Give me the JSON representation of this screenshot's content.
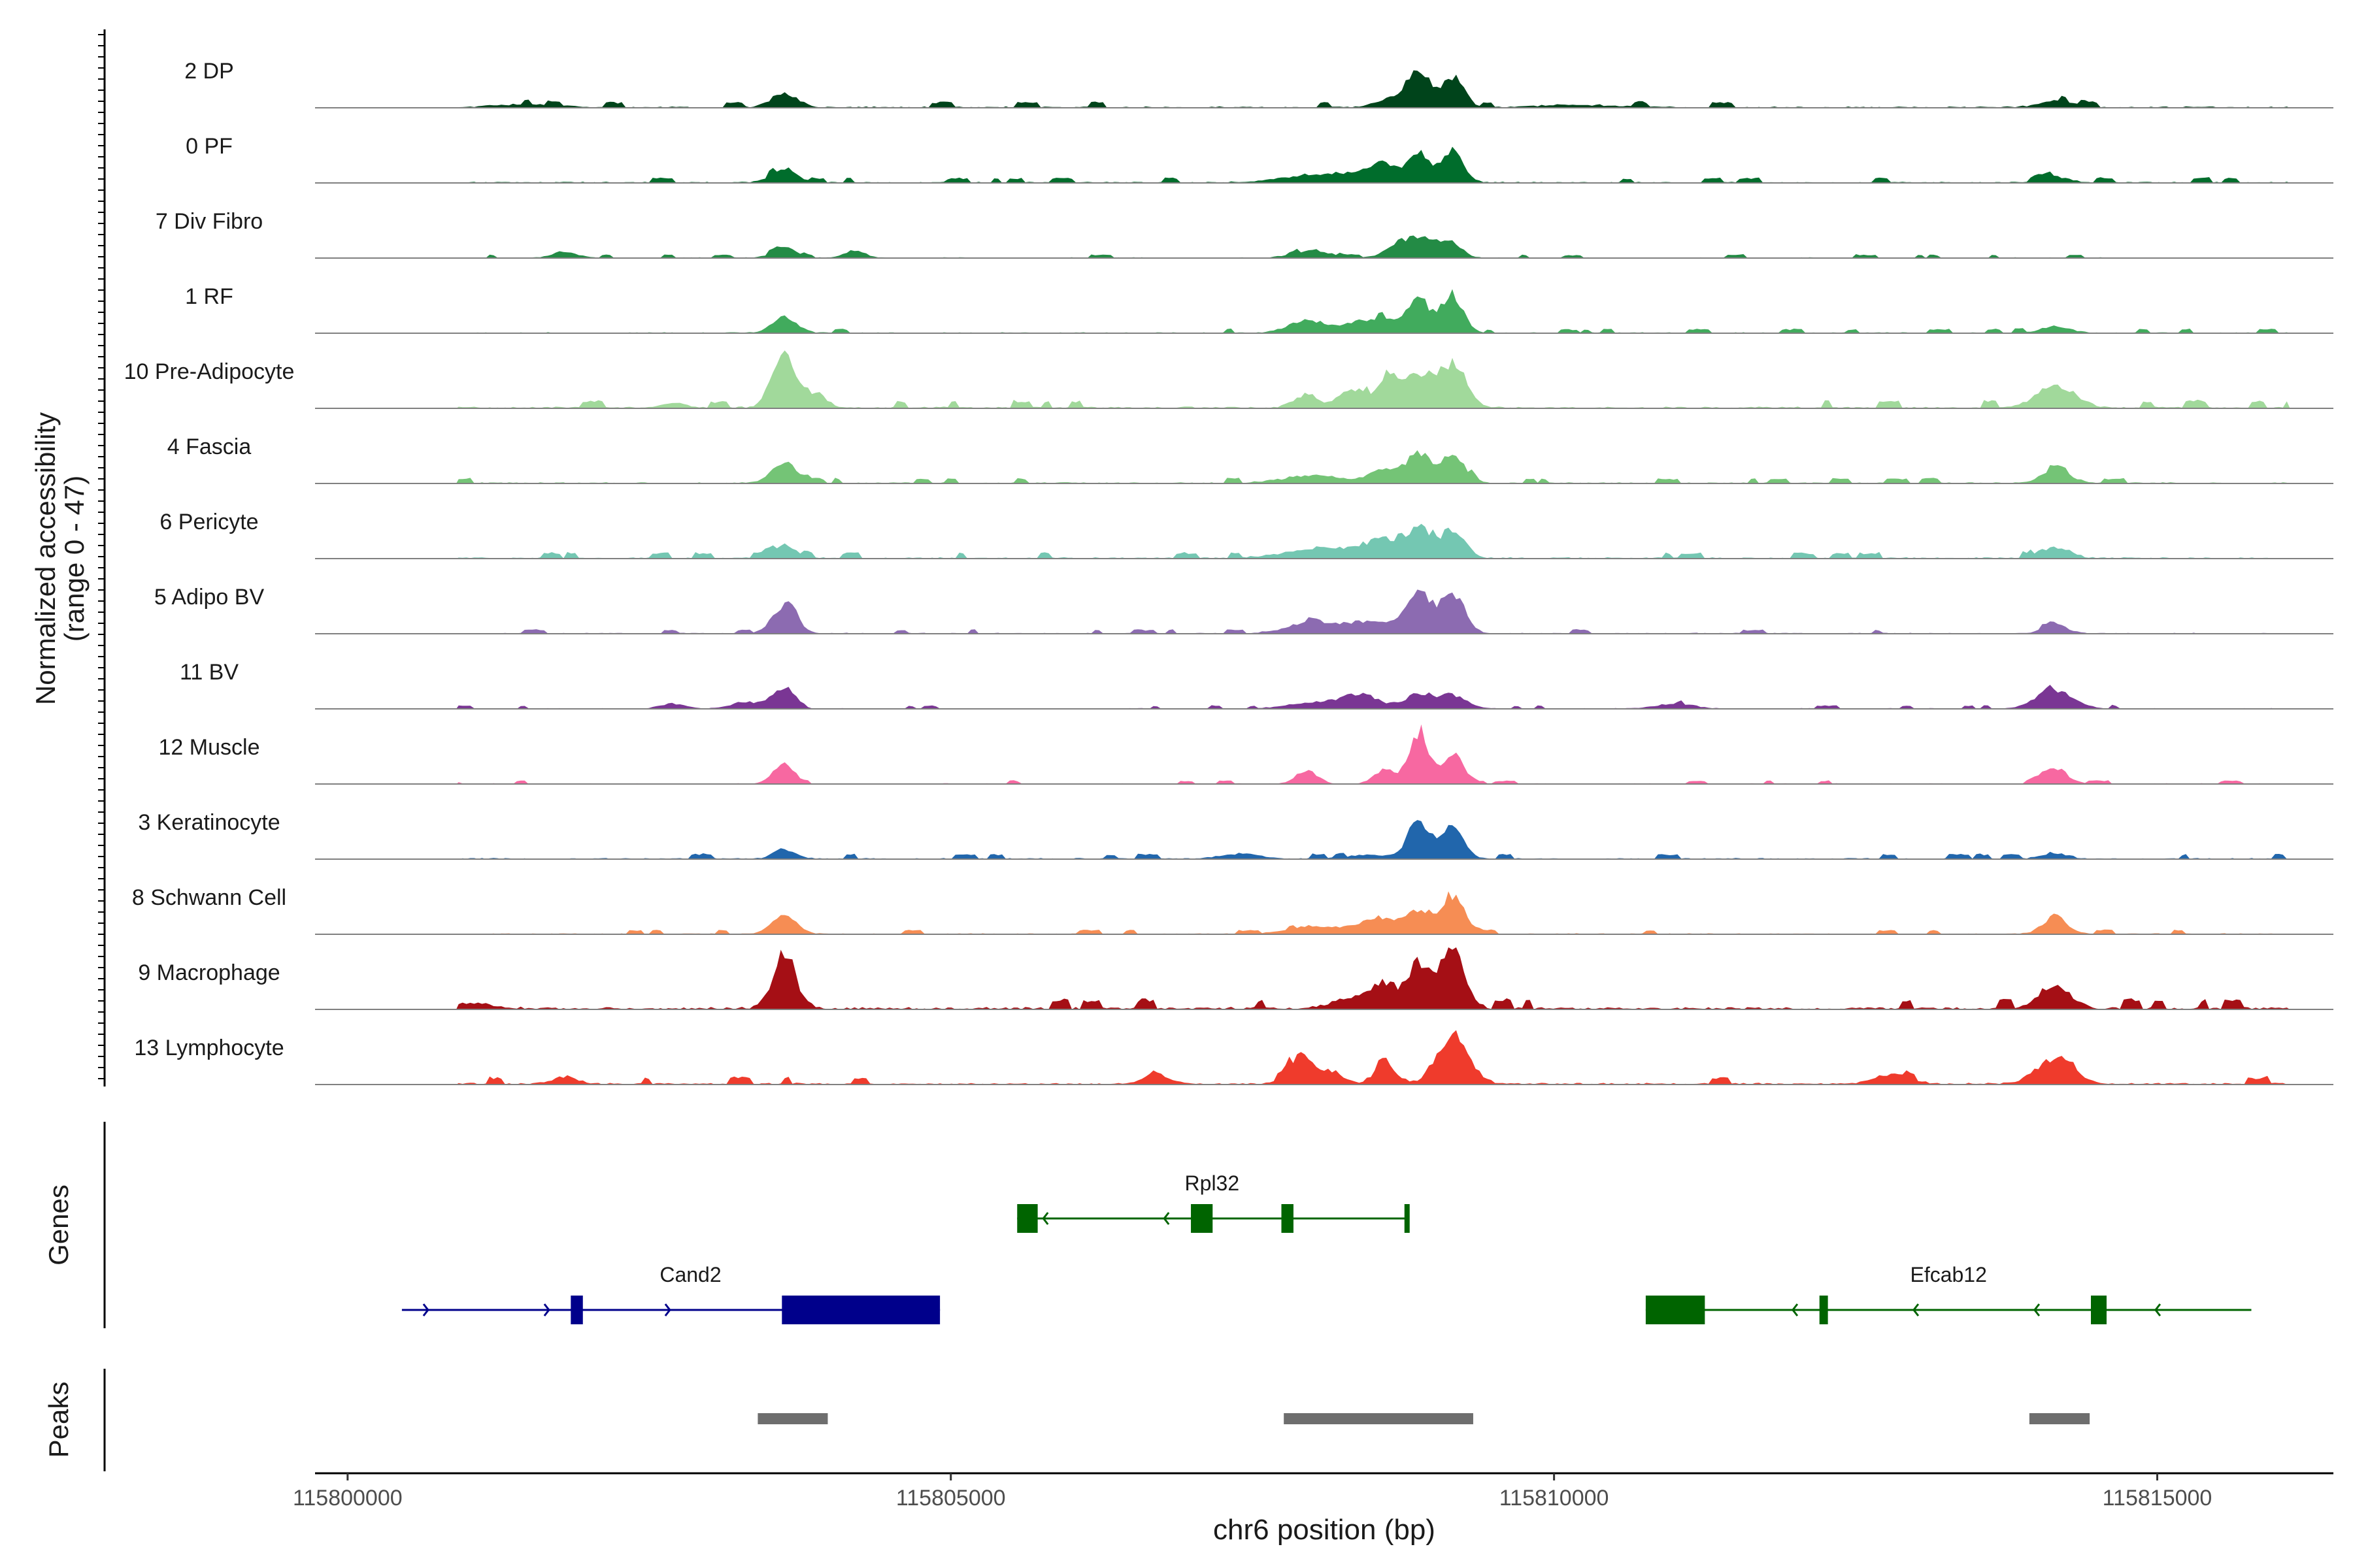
{
  "chart_data": {
    "type": "area",
    "title": "",
    "ylabel_line1": "Normalized accessibility",
    "ylabel_line2": "(range 0 - 47)",
    "y_range": [
      0,
      47
    ],
    "xlabel": "chr6 position (bp)",
    "xlim": [
      115799730,
      115816460
    ],
    "x_ticks": [
      115800000,
      115805000,
      115810000,
      115815000
    ],
    "x_tick_labels": [
      "115800000",
      "115805000",
      "115810000",
      "115815000"
    ],
    "track_section_labels": {
      "genes": "Genes",
      "peaks": "Peaks"
    },
    "series": [
      {
        "name": "2 DP",
        "color": "#00441b",
        "noise": 0.035,
        "peaks": [
          [
            115803620,
            110,
            0.22
          ],
          [
            115808650,
            120,
            0.15
          ],
          [
            115808880,
            90,
            0.62
          ],
          [
            115809160,
            90,
            0.5
          ],
          [
            115814160,
            140,
            0.1
          ],
          [
            115801500,
            250,
            0.05
          ],
          [
            115810200,
            300,
            0.04
          ]
        ]
      },
      {
        "name": "0 PF",
        "color": "#006d2c",
        "noise": 0.03,
        "peaks": [
          [
            115803620,
            100,
            0.22
          ],
          [
            115808100,
            300,
            0.14
          ],
          [
            115808560,
            150,
            0.22
          ],
          [
            115808880,
            90,
            0.5
          ],
          [
            115809160,
            90,
            0.5
          ],
          [
            115814150,
            110,
            0.1
          ]
        ]
      },
      {
        "name": "7 Div Fibro",
        "color": "#238b45",
        "noise": 0.02,
        "peaks": [
          [
            115803620,
            90,
            0.2
          ],
          [
            115804200,
            80,
            0.12
          ],
          [
            115801800,
            100,
            0.1
          ],
          [
            115808000,
            150,
            0.12
          ],
          [
            115808750,
            120,
            0.25
          ],
          [
            115808950,
            100,
            0.28
          ],
          [
            115809150,
            90,
            0.22
          ]
        ]
      },
      {
        "name": "1 RF",
        "color": "#41ab5d",
        "noise": 0.025,
        "peaks": [
          [
            115803620,
            100,
            0.25
          ],
          [
            115807950,
            150,
            0.2
          ],
          [
            115808350,
            120,
            0.15
          ],
          [
            115808600,
            110,
            0.25
          ],
          [
            115808880,
            90,
            0.55
          ],
          [
            115809160,
            90,
            0.55
          ],
          [
            115814160,
            120,
            0.1
          ]
        ]
      },
      {
        "name": "10 Pre-Adipocyte",
        "color": "#a1d99b",
        "noise": 0.045,
        "peaks": [
          [
            115803600,
            90,
            0.85
          ],
          [
            115803850,
            100,
            0.25
          ],
          [
            115807950,
            100,
            0.2
          ],
          [
            115808300,
            90,
            0.3
          ],
          [
            115808600,
            100,
            0.4
          ],
          [
            115808880,
            110,
            0.55
          ],
          [
            115809160,
            110,
            0.7
          ],
          [
            115814160,
            160,
            0.35
          ],
          [
            115802700,
            100,
            0.08
          ]
        ]
      },
      {
        "name": "4 Fascia",
        "color": "#74c476",
        "noise": 0.03,
        "peaks": [
          [
            115803620,
            100,
            0.33
          ],
          [
            115808000,
            250,
            0.12
          ],
          [
            115808600,
            130,
            0.2
          ],
          [
            115808880,
            100,
            0.45
          ],
          [
            115809160,
            100,
            0.45
          ],
          [
            115814160,
            120,
            0.2
          ]
        ]
      },
      {
        "name": "6 Pericyte",
        "color": "#74c7b2",
        "noise": 0.035,
        "peaks": [
          [
            115803620,
            100,
            0.2
          ],
          [
            115808100,
            300,
            0.16
          ],
          [
            115808600,
            150,
            0.28
          ],
          [
            115808880,
            100,
            0.38
          ],
          [
            115809160,
            100,
            0.45
          ],
          [
            115814150,
            120,
            0.18
          ]
        ]
      },
      {
        "name": "5 Adipo BV",
        "color": "#8c6bb1",
        "noise": 0.025,
        "peaks": [
          [
            115803620,
            100,
            0.45
          ],
          [
            115808000,
            200,
            0.18
          ],
          [
            115808500,
            200,
            0.18
          ],
          [
            115808880,
            100,
            0.6
          ],
          [
            115809160,
            100,
            0.62
          ],
          [
            115814150,
            100,
            0.15
          ]
        ]
      },
      {
        "name": "11 BV",
        "color": "#7a3694",
        "noise": 0.02,
        "peaks": [
          [
            115803600,
            90,
            0.33
          ],
          [
            115803300,
            120,
            0.1
          ],
          [
            115802700,
            100,
            0.08
          ],
          [
            115808000,
            200,
            0.1
          ],
          [
            115808400,
            150,
            0.22
          ],
          [
            115808880,
            120,
            0.22
          ],
          [
            115809160,
            120,
            0.2
          ],
          [
            115814150,
            150,
            0.3
          ],
          [
            115811000,
            150,
            0.08
          ]
        ]
      },
      {
        "name": "12 Muscle",
        "color": "#f768a1",
        "noise": 0.02,
        "peaks": [
          [
            115803600,
            80,
            0.33
          ],
          [
            115807950,
            90,
            0.22
          ],
          [
            115808600,
            90,
            0.22
          ],
          [
            115808880,
            80,
            0.85
          ],
          [
            115809160,
            80,
            0.52
          ],
          [
            115814150,
            100,
            0.25
          ],
          [
            115800700,
            120,
            0.1
          ]
        ]
      },
      {
        "name": "3 Keratinocyte",
        "color": "#2166ac",
        "noise": 0.03,
        "peaks": [
          [
            115803620,
            90,
            0.15
          ],
          [
            115807400,
            150,
            0.08
          ],
          [
            115808880,
            90,
            0.6
          ],
          [
            115809160,
            90,
            0.55
          ],
          [
            115814150,
            100,
            0.1
          ],
          [
            115808500,
            200,
            0.06
          ]
        ]
      },
      {
        "name": "8 Schwann Cell",
        "color": "#f68d54",
        "noise": 0.025,
        "peaks": [
          [
            115803620,
            100,
            0.3
          ],
          [
            115808000,
            200,
            0.12
          ],
          [
            115808550,
            180,
            0.25
          ],
          [
            115808880,
            100,
            0.33
          ],
          [
            115809160,
            100,
            0.62
          ],
          [
            115814150,
            100,
            0.28
          ]
        ]
      },
      {
        "name": "9 Macrophage",
        "color": "#a50f15",
        "noise": 0.06,
        "peaks": [
          [
            115803620,
            100,
            0.75
          ],
          [
            115808400,
            200,
            0.18
          ],
          [
            115808600,
            100,
            0.32
          ],
          [
            115808880,
            90,
            0.72
          ],
          [
            115809160,
            100,
            0.92
          ],
          [
            115814150,
            130,
            0.38
          ],
          [
            115801000,
            200,
            0.08
          ]
        ]
      },
      {
        "name": "13 Lymphocyte",
        "color": "#ef3b2c",
        "noise": 0.045,
        "peaks": [
          [
            115807900,
            100,
            0.45
          ],
          [
            115808150,
            100,
            0.2
          ],
          [
            115808600,
            90,
            0.3
          ],
          [
            115809160,
            130,
            0.8
          ],
          [
            115814150,
            150,
            0.42
          ],
          [
            115806700,
            100,
            0.18
          ],
          [
            115812800,
            150,
            0.15
          ],
          [
            115801800,
            100,
            0.12
          ]
        ]
      }
    ],
    "genes": [
      {
        "name": "Rpl32",
        "strand": "-",
        "color": "#006400",
        "start": 115805550,
        "end": 115808780,
        "exons": [
          [
            115805550,
            115805720
          ],
          [
            115806990,
            115807170
          ],
          [
            115807740,
            115807840
          ],
          [
            115808760,
            115808800
          ]
        ]
      },
      {
        "name": "Cand2",
        "strand": "+",
        "color": "#00008b",
        "start": 115800450,
        "end": 115804910,
        "exons": [
          [
            115801850,
            115801950
          ],
          [
            115803600,
            115804910
          ]
        ]
      },
      {
        "name": "Efcab12",
        "strand": "-",
        "color": "#006400",
        "start": 115810760,
        "end": 115815780,
        "exons": [
          [
            115810760,
            115811250
          ],
          [
            115812200,
            115812270
          ],
          [
            115814450,
            115814580
          ]
        ]
      }
    ],
    "peaks": [
      [
        115803400,
        115803980
      ],
      [
        115807760,
        115809330
      ],
      [
        115813940,
        115814440
      ]
    ]
  }
}
